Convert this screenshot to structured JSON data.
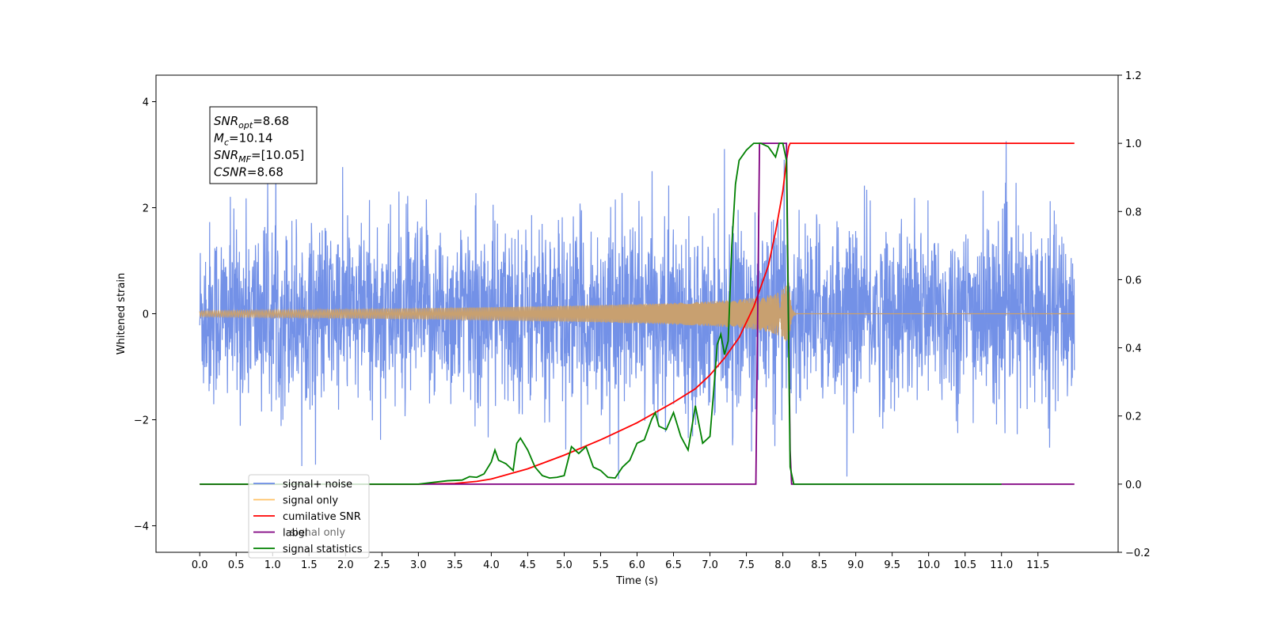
{
  "chart_data": {
    "type": "line",
    "xlabel": "Time (s)",
    "ylabel": "Whitened strain",
    "xlim": [
      -0.6,
      12.6
    ],
    "ylim": [
      -4.5,
      4.5
    ],
    "y2lim": [
      -0.2,
      1.2
    ],
    "x_ticks": [
      "0.0",
      "0.5",
      "1.0",
      "1.5",
      "2.0",
      "2.5",
      "3.0",
      "3.5",
      "4.0",
      "4.5",
      "5.0",
      "5.5",
      "6.0",
      "6.5",
      "7.0",
      "7.5",
      "8.0",
      "8.5",
      "9.0",
      "9.5",
      "10.0",
      "10.5",
      "11.0",
      "11.5"
    ],
    "y_ticks": [
      "4",
      "2",
      "0",
      "−2",
      "−4"
    ],
    "y2_ticks": [
      "1.2",
      "1.0",
      "0.8",
      "0.6",
      "0.4",
      "0.2",
      "0.0",
      "−0.2"
    ],
    "legend_position": "lower-left",
    "legend": [
      {
        "label": "signal+ noise",
        "color": "#6b8be6"
      },
      {
        "label": "signal only",
        "color": "#ffc266"
      },
      {
        "label": "cumilative SNR",
        "color": "#ff0000"
      },
      {
        "label": "label",
        "color": "#800080"
      },
      {
        "label": "signal statistics",
        "color": "#008000"
      }
    ],
    "legend_hidden_text": "signal only",
    "annotation": {
      "lines": [
        {
          "sym": "SNR",
          "sub": "opt",
          "val": "=8.68"
        },
        {
          "sym": "M",
          "sub": "c",
          "val": "=10.14"
        },
        {
          "sym": "SNR",
          "sub": "MF",
          "val": "=[10.05]"
        },
        {
          "sym": "CSNR",
          "sub": "",
          "val": "=8.68"
        }
      ]
    },
    "series": [
      {
        "name": "signal+ noise",
        "axis": "left",
        "noise_std": 0.85,
        "range": [
          0,
          12
        ]
      },
      {
        "name": "signal only",
        "axis": "left",
        "envelope_peak": 0.7,
        "merger_time": 8.08,
        "range": [
          0,
          12
        ]
      },
      {
        "name": "cumilative SNR",
        "axis": "right",
        "x": [
          0,
          3.0,
          3.5,
          3.8,
          4.0,
          4.5,
          5.0,
          5.5,
          6.0,
          6.5,
          6.8,
          7.0,
          7.2,
          7.4,
          7.6,
          7.8,
          7.9,
          8.0,
          8.05,
          8.08,
          8.1,
          12.0
        ],
        "y": [
          0,
          0,
          0.002,
          0.008,
          0.015,
          0.045,
          0.085,
          0.13,
          0.18,
          0.24,
          0.28,
          0.32,
          0.37,
          0.43,
          0.52,
          0.64,
          0.74,
          0.86,
          0.95,
          0.99,
          1.0,
          1.0
        ]
      },
      {
        "name": "label",
        "axis": "right",
        "x": [
          0,
          7.63,
          7.68,
          8.05,
          8.1,
          8.12,
          12.0
        ],
        "y": [
          0,
          0,
          1,
          1,
          0.1,
          0,
          0
        ]
      },
      {
        "name": "signal statistics",
        "axis": "right",
        "x": [
          0,
          2.5,
          3.0,
          3.2,
          3.4,
          3.6,
          3.7,
          3.8,
          3.9,
          4.0,
          4.05,
          4.1,
          4.2,
          4.3,
          4.35,
          4.4,
          4.5,
          4.6,
          4.7,
          4.8,
          4.9,
          5.0,
          5.1,
          5.2,
          5.3,
          5.4,
          5.5,
          5.6,
          5.7,
          5.8,
          5.9,
          6.0,
          6.1,
          6.2,
          6.25,
          6.3,
          6.4,
          6.5,
          6.6,
          6.7,
          6.8,
          6.9,
          7.0,
          7.05,
          7.1,
          7.15,
          7.2,
          7.25,
          7.3,
          7.35,
          7.4,
          7.5,
          7.6,
          7.7,
          7.8,
          7.9,
          7.95,
          8.0,
          8.05,
          8.1,
          8.15,
          8.2,
          11.0
        ],
        "y": [
          0,
          0,
          0,
          0.005,
          0.01,
          0.012,
          0.022,
          0.02,
          0.03,
          0.065,
          0.1,
          0.07,
          0.06,
          0.04,
          0.12,
          0.135,
          0.1,
          0.05,
          0.025,
          0.018,
          0.02,
          0.025,
          0.11,
          0.09,
          0.11,
          0.05,
          0.04,
          0.02,
          0.018,
          0.05,
          0.07,
          0.12,
          0.13,
          0.19,
          0.21,
          0.17,
          0.16,
          0.21,
          0.14,
          0.1,
          0.23,
          0.12,
          0.14,
          0.27,
          0.41,
          0.44,
          0.38,
          0.42,
          0.7,
          0.88,
          0.95,
          0.98,
          1.0,
          1.0,
          0.99,
          0.96,
          1.0,
          1.0,
          0.95,
          0.05,
          0.0,
          0.0,
          0.0
        ]
      }
    ]
  }
}
